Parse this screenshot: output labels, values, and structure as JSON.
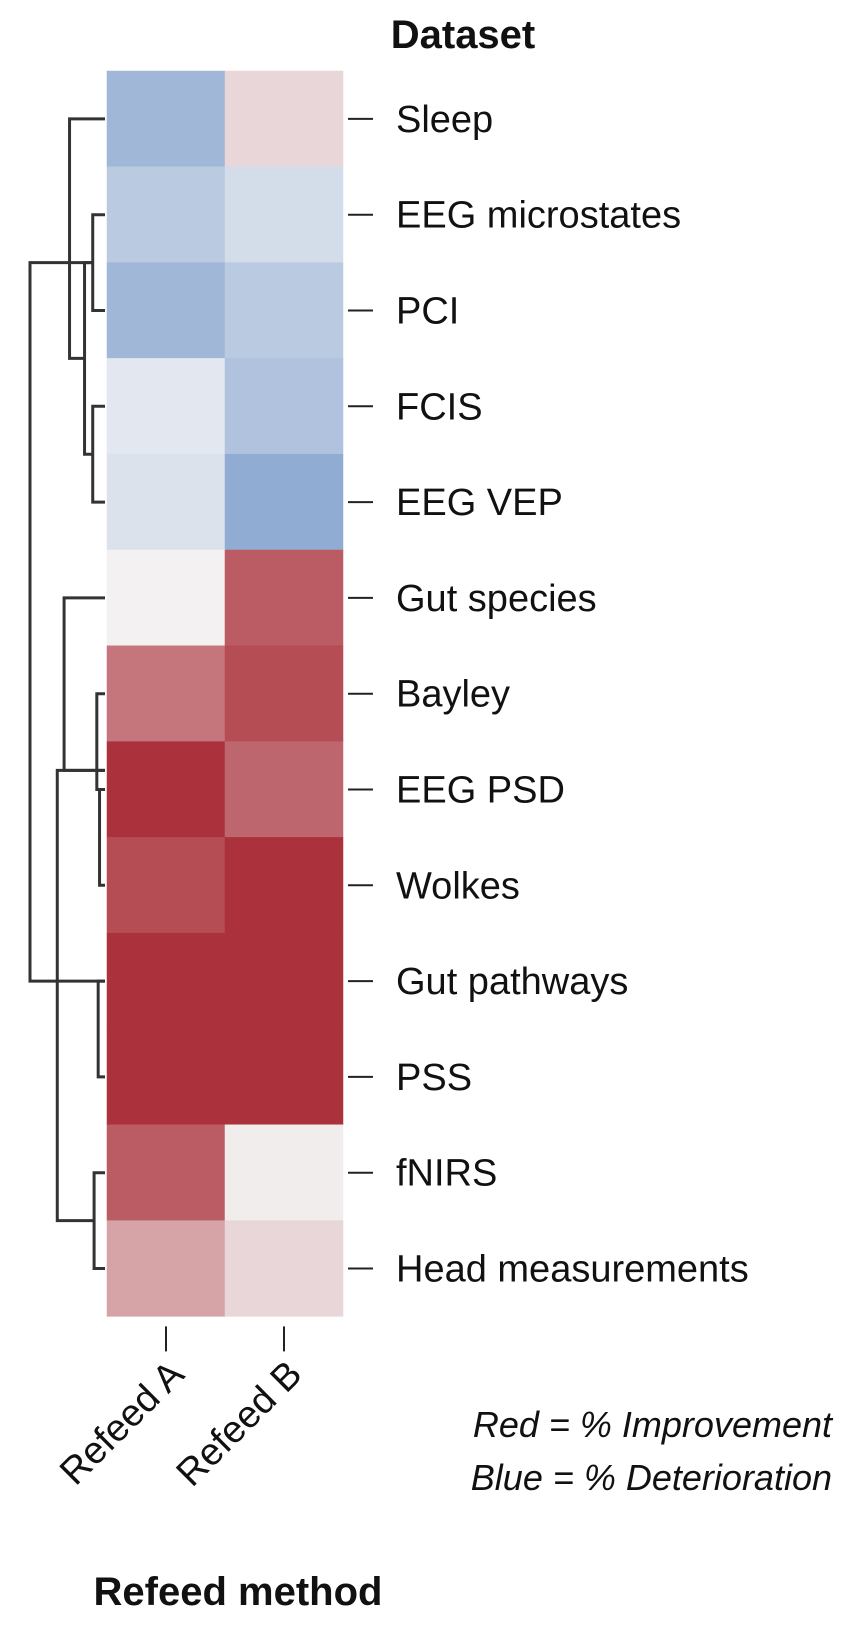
{
  "chart_data": {
    "type": "heatmap",
    "title": "Dataset",
    "xlabel": "Refeed method",
    "columns": [
      "Refeed A",
      "Refeed B"
    ],
    "rows": [
      "Sleep",
      "EEG microstates",
      "PCI",
      "FCIS",
      "EEG VEP",
      "Gut species",
      "Bayley",
      "EEG PSD",
      "Wolkes",
      "Gut pathways",
      "PSS",
      "fNIRS",
      "Head measurements"
    ],
    "values": [
      [
        -0.55,
        0.15
      ],
      [
        -0.38,
        -0.22
      ],
      [
        -0.55,
        -0.38
      ],
      [
        -0.12,
        -0.45
      ],
      [
        -0.17,
        -0.65
      ],
      [
        0.02,
        0.75
      ],
      [
        0.62,
        0.82
      ],
      [
        0.95,
        0.7
      ],
      [
        0.82,
        0.95
      ],
      [
        0.95,
        0.95
      ],
      [
        0.95,
        0.95
      ],
      [
        0.75,
        0.04
      ],
      [
        0.4,
        0.15
      ]
    ],
    "value_range": [
      -1,
      1
    ],
    "colors": {
      "negative": "#5b84bf",
      "neutral": "#f5f5f5",
      "positive": "#a72832"
    },
    "dendrogram": {
      "nodes": [
        {
          "rows": [
            6,
            7
          ],
          "height": 0.6
        },
        {
          "rows": [
            7,
            8
          ],
          "height": 0.4
        },
        {
          "rows": [
            9,
            10
          ],
          "height": 0.5
        },
        {
          "rows": [
            11,
            12
          ],
          "height": 0.8
        },
        {
          "rows": [
            1,
            2
          ],
          "height": 0.9
        },
        {
          "rows": [
            3,
            4
          ],
          "height": 0.9
        },
        {
          "rows": [
            1.5,
            3.5
          ],
          "height": 1.5
        },
        {
          "rows": [
            0,
            2.5
          ],
          "height": 2.6
        },
        {
          "rows": [
            5,
            6.8
          ],
          "height": 3.0
        },
        {
          "rows": [
            6.8,
            11.5
          ],
          "height": 3.5
        },
        {
          "rows": [
            1.5,
            9.0
          ],
          "height": 5.5
        }
      ]
    },
    "annotations": [
      "Red = % Improvement",
      "Blue = % Deterioration"
    ]
  }
}
